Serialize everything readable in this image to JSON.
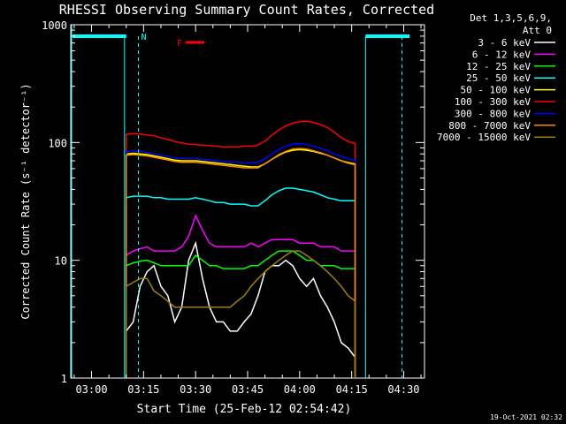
{
  "chart_data": {
    "type": "line",
    "title": "RHESSI Observing Summary Count Rates, Corrected",
    "xlabel": "Start Time (25-Feb-12 02:54:42)",
    "ylabel": "Corrected Count Rate (s⁻¹ detector⁻¹)",
    "yscale": "log",
    "ylim": [
      1,
      1000
    ],
    "xlim_minutes": [
      -6,
      36
    ],
    "x_ticks": [
      {
        "m": 0,
        "label": "03:00"
      },
      {
        "m": 15,
        "label": "03:15"
      },
      {
        "m": 30,
        "label": "03:30"
      },
      {
        "m": 45,
        "label": "03:45"
      },
      {
        "m": 60,
        "label": "04:00"
      },
      {
        "m": 75,
        "label": "04:15"
      },
      {
        "m": 90,
        "label": "04:30"
      }
    ],
    "y_ticks": [
      {
        "v": 1,
        "label": "1"
      },
      {
        "v": 10,
        "label": "10"
      },
      {
        "v": 100,
        "label": "100"
      },
      {
        "v": 1000,
        "label": "1000"
      }
    ],
    "legend": {
      "position": "top-right",
      "header": [
        "Det 1,3,5,6,9,",
        "Att 0"
      ]
    },
    "series": [
      {
        "name": "3 - 6 keV",
        "color": "#ffffff",
        "x": [
          10,
          12,
          14,
          16,
          18,
          20,
          22,
          24,
          26,
          28,
          30,
          32,
          34,
          36,
          38,
          40,
          42,
          44,
          46,
          48,
          50,
          52,
          54,
          56,
          58,
          60,
          62,
          64,
          66,
          68,
          70,
          72,
          74,
          76
        ],
        "y": [
          2.5,
          3,
          6,
          8,
          9,
          6,
          5,
          3,
          4,
          10,
          14,
          7,
          4,
          3,
          3,
          2.5,
          2.5,
          3,
          3.5,
          5,
          8,
          9,
          9,
          10,
          9,
          7,
          6,
          7,
          5,
          4,
          3,
          2,
          1.8,
          1.5
        ]
      },
      {
        "name": "6 - 12 keV",
        "color": "#ff00ff",
        "x": [
          10,
          12,
          14,
          16,
          18,
          20,
          22,
          24,
          26,
          28,
          30,
          32,
          34,
          36,
          38,
          40,
          42,
          44,
          46,
          48,
          50,
          52,
          54,
          56,
          58,
          60,
          62,
          64,
          66,
          68,
          70,
          72,
          74,
          76
        ],
        "y": [
          11,
          12,
          12.5,
          13,
          12,
          12,
          12,
          12,
          13,
          16,
          24,
          18,
          14,
          13,
          13,
          13,
          13,
          13,
          14,
          13,
          14,
          15,
          15,
          15,
          15,
          14,
          14,
          14,
          13,
          13,
          13,
          12,
          12,
          12
        ]
      },
      {
        "name": "12 - 25 keV",
        "color": "#00ff00",
        "x": [
          10,
          12,
          14,
          16,
          18,
          20,
          22,
          24,
          26,
          28,
          30,
          32,
          34,
          36,
          38,
          40,
          42,
          44,
          46,
          48,
          50,
          52,
          54,
          56,
          58,
          60,
          62,
          64,
          66,
          68,
          70,
          72,
          74,
          76
        ],
        "y": [
          9,
          9.5,
          9.8,
          10,
          9.5,
          9,
          9,
          9,
          9,
          9,
          11,
          10,
          9,
          9,
          8.5,
          8.5,
          8.5,
          8.5,
          9,
          9,
          10,
          11,
          12,
          12,
          12,
          11,
          10,
          10,
          9,
          9,
          9,
          8.5,
          8.5,
          8.5
        ]
      },
      {
        "name": "25 - 50 keV",
        "color": "#00ffff",
        "x": [
          10,
          12,
          14,
          16,
          18,
          20,
          22,
          24,
          26,
          28,
          30,
          32,
          34,
          36,
          38,
          40,
          42,
          44,
          46,
          48,
          50,
          52,
          54,
          56,
          58,
          60,
          62,
          64,
          66,
          68,
          70,
          72,
          74,
          76
        ],
        "y": [
          34,
          35,
          35,
          35,
          34,
          34,
          33,
          33,
          33,
          33,
          34,
          33,
          32,
          31,
          31,
          30,
          30,
          30,
          29,
          29,
          32,
          36,
          39,
          41,
          41,
          40,
          39,
          38,
          36,
          34,
          33,
          32,
          32,
          32
        ]
      },
      {
        "name": "50 - 100 keV",
        "color": "#ffff00",
        "x": [
          10,
          12,
          14,
          16,
          18,
          20,
          22,
          24,
          26,
          28,
          30,
          32,
          34,
          36,
          38,
          40,
          42,
          44,
          46,
          48,
          50,
          52,
          54,
          56,
          58,
          60,
          62,
          64,
          66,
          68,
          70,
          72,
          74,
          76
        ],
        "y": [
          80,
          81,
          80,
          79,
          77,
          75,
          73,
          71,
          70,
          70,
          70,
          69,
          68,
          67,
          66,
          65,
          64,
          63,
          62,
          62,
          66,
          72,
          78,
          83,
          86,
          87,
          86,
          84,
          81,
          78,
          74,
          70,
          67,
          65
        ]
      },
      {
        "name": "100 - 300 keV",
        "color": "#ff0000",
        "x": [
          10,
          12,
          14,
          16,
          18,
          20,
          22,
          24,
          26,
          28,
          30,
          32,
          34,
          36,
          38,
          40,
          42,
          44,
          46,
          48,
          50,
          52,
          54,
          56,
          58,
          60,
          62,
          64,
          66,
          68,
          70,
          72,
          74,
          76
        ],
        "y": [
          117,
          119,
          118,
          116,
          114,
          110,
          106,
          102,
          99,
          97,
          96,
          95,
          94,
          93,
          92,
          92,
          92,
          93,
          93,
          95,
          103,
          115,
          128,
          138,
          146,
          150,
          152,
          148,
          142,
          134,
          122,
          110,
          102,
          98
        ]
      },
      {
        "name": "300 - 800 keV",
        "color": "#0000ff",
        "x": [
          10,
          12,
          14,
          16,
          18,
          20,
          22,
          24,
          26,
          28,
          30,
          32,
          34,
          36,
          38,
          40,
          42,
          44,
          46,
          48,
          50,
          52,
          54,
          56,
          58,
          60,
          62,
          64,
          66,
          68,
          70,
          72,
          74,
          76
        ],
        "y": [
          84,
          85,
          84,
          82,
          80,
          78,
          76,
          74,
          73,
          73,
          73,
          72,
          71,
          70,
          69,
          68,
          68,
          67,
          67,
          68,
          73,
          80,
          87,
          93,
          97,
          98,
          96,
          93,
          89,
          85,
          80,
          76,
          73,
          71
        ]
      },
      {
        "name": "800 - 7000 keV",
        "color": "#ff8c00",
        "x": [
          10,
          12,
          14,
          16,
          18,
          20,
          22,
          24,
          26,
          28,
          30,
          32,
          34,
          36,
          38,
          40,
          42,
          44,
          46,
          48,
          50,
          52,
          54,
          56,
          58,
          60,
          62,
          64,
          66,
          68,
          70,
          72,
          74,
          76
        ],
        "y": [
          78,
          79,
          78,
          77,
          75,
          73,
          71,
          69,
          68,
          68,
          68,
          67,
          66,
          65,
          64,
          63,
          62,
          61,
          61,
          61,
          66,
          72,
          79,
          84,
          88,
          89,
          88,
          85,
          82,
          78,
          74,
          70,
          68,
          66
        ]
      },
      {
        "name": "7000 - 15000 keV",
        "color": "#a08000",
        "x": [
          10,
          12,
          14,
          16,
          18,
          20,
          22,
          24,
          26,
          28,
          30,
          32,
          34,
          36,
          38,
          40,
          42,
          44,
          46,
          48,
          50,
          52,
          54,
          56,
          58,
          60,
          62,
          64,
          66,
          68,
          70,
          72,
          74,
          76
        ],
        "y": [
          6,
          6.5,
          7,
          7,
          5.5,
          5,
          4.5,
          4,
          4,
          4,
          4,
          4,
          4,
          4,
          4,
          4,
          4.5,
          5,
          6,
          7,
          8,
          9,
          10,
          11,
          12,
          12,
          11,
          10,
          9,
          8,
          7,
          6,
          5,
          4.5
        ]
      }
    ],
    "annotations": [
      {
        "text": "N",
        "color": "#00ffff"
      },
      {
        "text": "F",
        "color": "#ff0000"
      }
    ],
    "timestamp": "19-Oct-2021 02:32"
  }
}
